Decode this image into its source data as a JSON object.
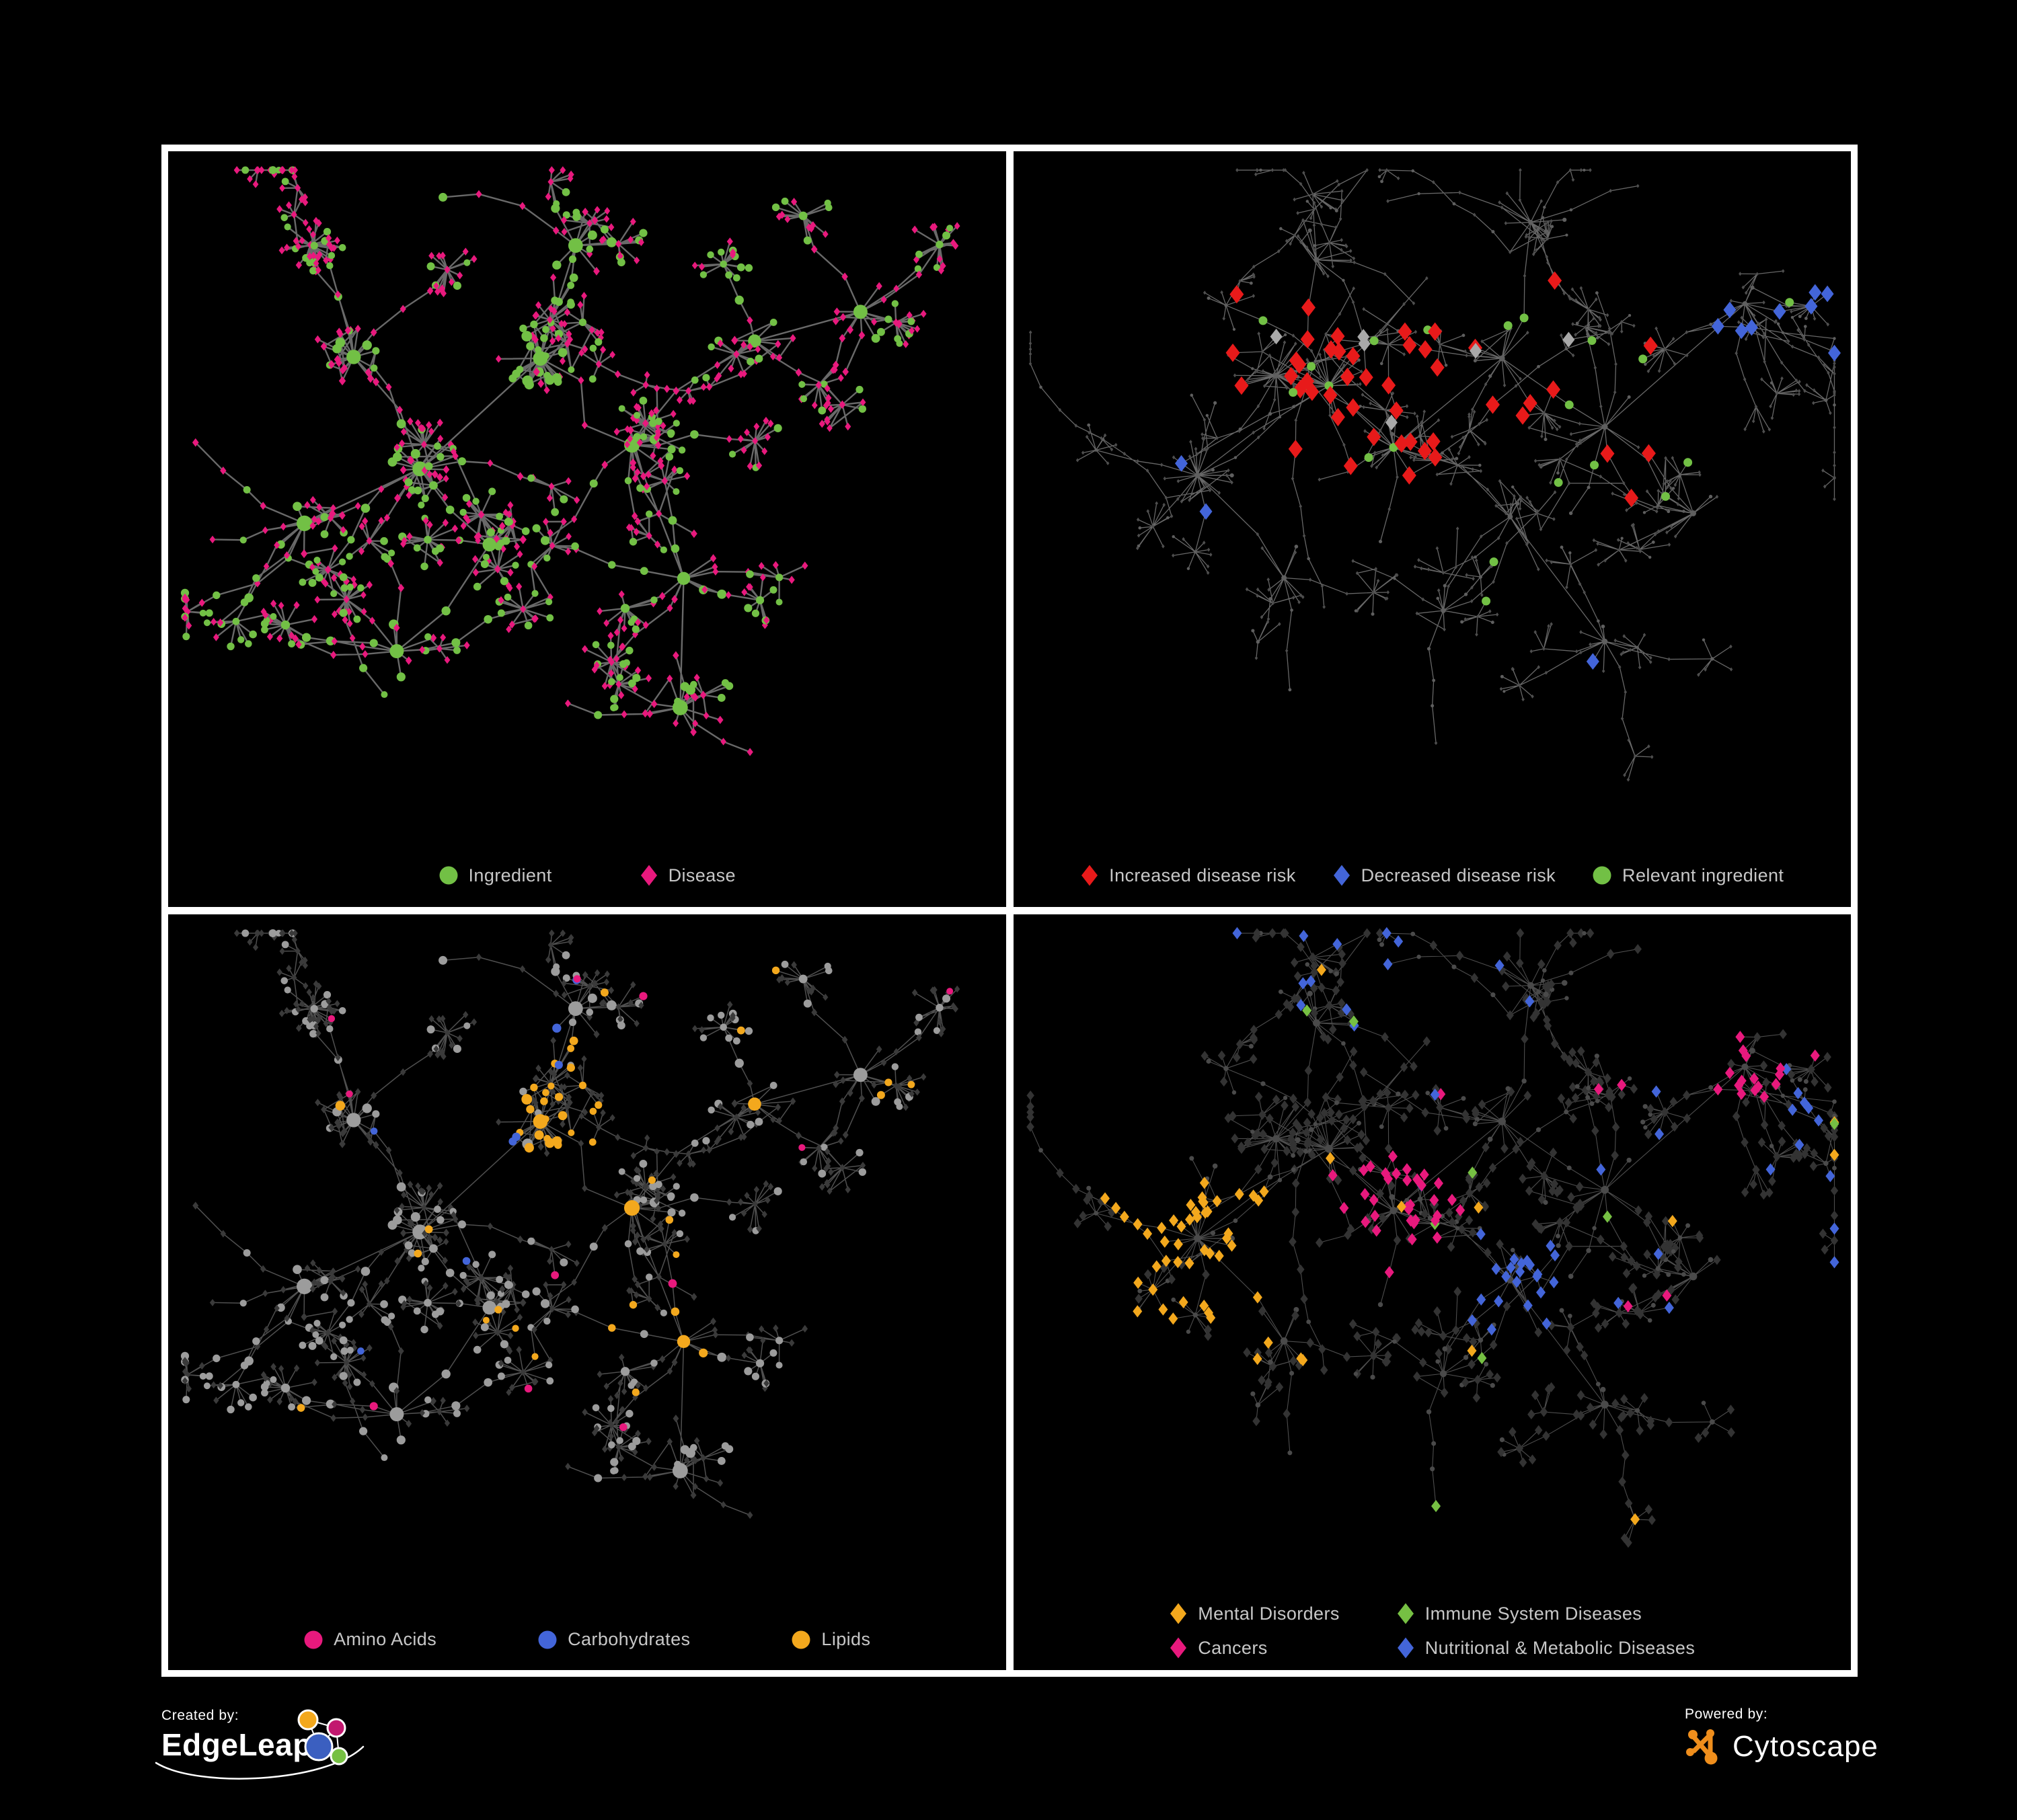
{
  "footer": {
    "created_by": "Created by:",
    "brand_left": "EdgeLeap",
    "powered_by": "Powered by:",
    "brand_right": "Cytoscape"
  },
  "layouts": {
    "A": {
      "seed": 11,
      "cores": 3,
      "coreRing": [
        15,
        24
      ],
      "ring": [
        4,
        9
      ],
      "branches": [
        4,
        7
      ],
      "chain": [
        1,
        4
      ],
      "burstP": 0.6,
      "burstK": [
        6,
        18
      ],
      "extraEdges": 150,
      "tendrils": 4,
      "circleFrac": 0.36,
      "anchors": [
        [
          0.3,
          0.47
        ],
        [
          0.44,
          0.29
        ],
        [
          0.22,
          0.3
        ],
        [
          0.4,
          0.6
        ],
        [
          0.55,
          0.44
        ],
        [
          0.29,
          0.73
        ],
        [
          0.6,
          0.64
        ],
        [
          0.47,
          0.14
        ],
        [
          0.7,
          0.27
        ],
        [
          0.83,
          0.24
        ],
        [
          0.6,
          0.83
        ],
        [
          0.16,
          0.56
        ]
      ]
    },
    "B": {
      "seed": 7,
      "cores": 4,
      "coreRing": [
        12,
        20
      ],
      "ring": [
        3,
        8
      ],
      "branches": [
        4,
        7
      ],
      "chain": [
        1,
        4
      ],
      "burstP": 0.5,
      "burstK": [
        4,
        12
      ],
      "extraEdges": 110,
      "tendrils": 10,
      "circleFrac": 0.18,
      "anchors": [
        [
          0.4,
          0.37
        ],
        [
          0.21,
          0.48
        ],
        [
          0.33,
          0.32
        ],
        [
          0.46,
          0.45
        ],
        [
          0.56,
          0.32
        ],
        [
          0.61,
          0.56
        ],
        [
          0.7,
          0.4
        ],
        [
          0.88,
          0.23
        ],
        [
          0.31,
          0.64
        ],
        [
          0.52,
          0.7
        ],
        [
          0.69,
          0.72
        ],
        [
          0.81,
          0.53
        ],
        [
          0.37,
          0.15
        ],
        [
          0.63,
          0.13
        ]
      ]
    }
  },
  "panels": [
    {
      "name": "ingredient-disease-network",
      "layout": "A",
      "paintSeed": 5,
      "style": {
        "edge": {
          "color": "#777777",
          "width": 2.4,
          "opacity": 0.88
        },
        "base": {
          "circle": {
            "color": "#72c045",
            "r0": 3.4,
            "k": 0.78
          },
          "diamond": {
            "color": "#e8197d",
            "r0": 3.9,
            "k": 0.22
          }
        },
        "paint": []
      },
      "legend": {
        "kind": "row",
        "gap": 130,
        "items": [
          {
            "shape": "circle",
            "color": "#72c045",
            "label": "Ingredient"
          },
          {
            "shape": "diamond",
            "color": "#e8197d",
            "label": "Disease"
          }
        ]
      }
    },
    {
      "name": "disease-risk-network",
      "layout": "B",
      "paintSeed": 101,
      "style": {
        "edge": {
          "color": "#6d6d6d",
          "width": 1.3,
          "opacity": 0.95
        },
        "base": {
          "circle": {
            "color": "#5f5f5f",
            "r0": 1.6,
            "k": 0.26
          },
          "diamond": {
            "color": "#4e4e4e",
            "r0": 2.3,
            "k": 0
          }
        },
        "paint": [
          {
            "shape": "diamond",
            "color": "#e81a1a",
            "size": 10.5,
            "match": [
              {
                "hubs": [
                  0,
                  2,
                  3,
                  4,
                  6
                ],
                "r": 0.14,
                "p": 0.13
              },
              {
                "scatter": 0.005
              }
            ]
          },
          {
            "shape": "diamond",
            "color": "#4365d9",
            "size": 9.5,
            "match": [
              {
                "hubs": [
                  1
                ],
                "r": 0.1,
                "p": 0.1
              },
              {
                "band": [
                  0.84,
                  1,
                  0.1,
                  0.3
                ],
                "p": 0.3
              },
              {
                "scatter": 0.003
              }
            ]
          },
          {
            "shape": "diamond",
            "color": "#a9a9a9",
            "size": 9,
            "match": [
              {
                "hubs": [
                  0,
                  4
                ],
                "r": 0.13,
                "p": 0.05
              }
            ]
          },
          {
            "shape": "circle",
            "color": "#72c045",
            "size": 6.5,
            "match": [
              {
                "hubs": [
                  0,
                  2,
                  3,
                  4,
                  5,
                  6
                ],
                "r": 0.14,
                "p": 0.2
              },
              {
                "scatter": 0.01
              }
            ]
          }
        ]
      },
      "legend": {
        "kind": "row",
        "gap": 54,
        "items": [
          {
            "shape": "diamond",
            "color": "#e81a1a",
            "label": "Increased disease risk"
          },
          {
            "shape": "diamond",
            "color": "#4365d9",
            "label": "Decreased disease risk"
          },
          {
            "shape": "circle",
            "color": "#72c045",
            "label": "Relevant ingredient"
          }
        ]
      }
    },
    {
      "name": "nutrient-classes-network",
      "layout": "A",
      "paintSeed": 303,
      "style": {
        "edge": {
          "color": "#909090",
          "width": 1.5,
          "opacity": 0.55
        },
        "base": {
          "circle": {
            "color": "#9c9c9c",
            "r0": 3.4,
            "k": 0.78
          },
          "diamond": {
            "color": "#3a3a3a",
            "r0": 3.7,
            "k": 0.18
          }
        },
        "paint": [
          {
            "shape": "circle",
            "color": "#4365d9",
            "match": [
              {
                "hubs": [
                  1
                ],
                "r": 0.12,
                "p": 0.2
              },
              {
                "scatter": 0.012
              }
            ]
          },
          {
            "shape": "circle",
            "color": "#f3a81d",
            "match": [
              {
                "hubs": [
                  1
                ],
                "r": 0.14,
                "p": 0.85
              },
              {
                "hubs": [
                  6
                ],
                "r": 0.05,
                "p": 0.4
              },
              {
                "scatter": 0.055
              }
            ]
          },
          {
            "shape": "circle",
            "color": "#e8197d",
            "match": [
              {
                "scatter": 0.05
              }
            ]
          }
        ]
      },
      "legend": {
        "kind": "row",
        "gap": 150,
        "items": [
          {
            "shape": "circle",
            "color": "#e8197d",
            "label": "Amino Acids"
          },
          {
            "shape": "circle",
            "color": "#4365d9",
            "label": "Carbohydrates"
          },
          {
            "shape": "circle",
            "color": "#f3a81d",
            "label": "Lipids"
          }
        ]
      }
    },
    {
      "name": "disease-categories-network",
      "layout": "B",
      "paintSeed": 202,
      "style": {
        "edge": {
          "color": "#9a9a9a",
          "width": 1.1,
          "opacity": 0.5
        },
        "base": {
          "circle": {
            "color": "#4a4a4a",
            "r0": 2.6,
            "k": 0.3
          },
          "diamond": {
            "color": "#333333",
            "r0": 5.6,
            "k": 0.05
          }
        },
        "paint": [
          {
            "shape": "diamond",
            "color": "#f3a81d",
            "size": 7,
            "match": [
              {
                "hubs": [
                  1
                ],
                "r": 0.13,
                "p": 0.8
              },
              {
                "hubs": [
                  8
                ],
                "r": 0.05,
                "p": 0.45
              },
              {
                "scatter": 0.014
              }
            ]
          },
          {
            "shape": "diamond",
            "color": "#e8197d",
            "size": 7,
            "match": [
              {
                "hubs": [
                  3
                ],
                "r": 0.105,
                "p": 0.6
              },
              {
                "hubs": [
                  7
                ],
                "r": 0.06,
                "p": 0.5
              },
              {
                "scatter": 0.018
              }
            ]
          },
          {
            "shape": "diamond",
            "color": "#4365d9",
            "size": 7,
            "match": [
              {
                "hubs": [
                  5
                ],
                "r": 0.085,
                "p": 0.7
              },
              {
                "band": [
                  0,
                  1,
                  0,
                  0.18
                ],
                "p": 0.16
              },
              {
                "band": [
                  0.74,
                  1,
                  0.18,
                  0.62
                ],
                "p": 0.12
              },
              {
                "scatter": 0.022
              }
            ]
          },
          {
            "shape": "diamond",
            "color": "#76c043",
            "size": 7,
            "match": [
              {
                "scatter": 0.016
              }
            ]
          }
        ]
      },
      "legend": {
        "kind": "grid2",
        "gap": 84,
        "items": [
          {
            "shape": "diamond",
            "color": "#f3a81d",
            "label": "Mental Disorders"
          },
          {
            "shape": "diamond",
            "color": "#76c043",
            "label": "Immune System Diseases"
          },
          {
            "shape": "diamond",
            "color": "#e8197d",
            "label": "Cancers"
          },
          {
            "shape": "diamond",
            "color": "#4365d9",
            "label": "Nutritional & Metabolic Diseases"
          }
        ]
      }
    }
  ]
}
